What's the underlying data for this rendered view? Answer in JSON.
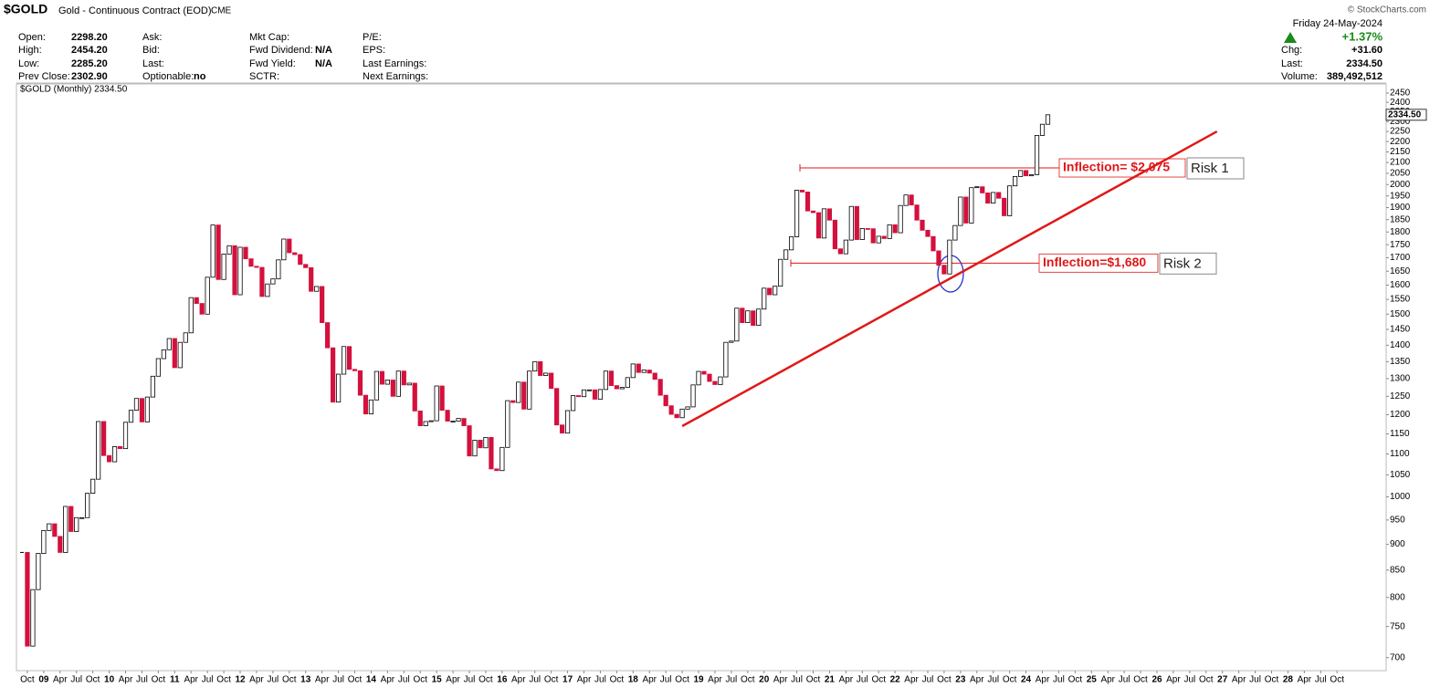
{
  "header": {
    "symbol": "$GOLD",
    "name": "Gold - Continuous Contract (EOD)",
    "exchange": "CME",
    "copyright": "© StockCharts.com",
    "fields": [
      [
        {
          "label": "Open:",
          "value": "2298.20"
        },
        {
          "label": "High:",
          "value": "2454.20"
        },
        {
          "label": "Low:",
          "value": "2285.20"
        },
        {
          "label": "Prev Close:",
          "value": "2302.90"
        }
      ],
      [
        {
          "label": "Ask:"
        },
        {
          "label": "Bid:"
        },
        {
          "label": "Last:"
        },
        {
          "label": "Optionable:",
          "value": "no"
        }
      ],
      [
        {
          "label": "Mkt Cap:"
        },
        {
          "label": "Fwd Dividend:",
          "value": "N/A"
        },
        {
          "label": "Fwd Yield:",
          "value": "N/A"
        },
        {
          "label": "SCTR:"
        }
      ],
      [
        {
          "label": "P/E:"
        },
        {
          "label": "EPS:"
        },
        {
          "label": "Last Earnings:"
        },
        {
          "label": "Next Earnings:"
        }
      ]
    ],
    "summary": {
      "date": "Friday 24-May-2024",
      "change_pct": "+1.37%",
      "rows": [
        {
          "label": "Chg:",
          "value": "+31.60"
        },
        {
          "label": "Last:",
          "value": "2334.50"
        },
        {
          "label": "Volume:",
          "value": "389,492,512"
        }
      ]
    }
  },
  "chart_data": {
    "type": "candlestick",
    "legend": "$GOLD (Monthly) 2334.50",
    "scale": "log",
    "up_color": "#ffffff",
    "down_color": "#d4103c",
    "close": [
      884,
      718,
      814,
      882,
      928,
      942,
      916,
      884,
      979,
      926,
      955,
      955,
      1008,
      1040,
      1182,
      1096,
      1081,
      1118,
      1113,
      1180,
      1212,
      1244,
      1181,
      1248,
      1307,
      1359,
      1386,
      1421,
      1332,
      1409,
      1439,
      1556,
      1536,
      1500,
      1628,
      1828,
      1620,
      1714,
      1746,
      1566,
      1740,
      1696,
      1668,
      1664,
      1560,
      1604,
      1622,
      1692,
      1772,
      1719,
      1712,
      1675,
      1663,
      1578,
      1595,
      1472,
      1392,
      1234,
      1313,
      1396,
      1327,
      1323,
      1253,
      1202,
      1240,
      1321,
      1284,
      1296,
      1250,
      1322,
      1282,
      1287,
      1210,
      1171,
      1182,
      1184,
      1279,
      1212,
      1183,
      1183,
      1190,
      1171,
      1095,
      1134,
      1115,
      1141,
      1064,
      1060,
      1116,
      1238,
      1233,
      1290,
      1215,
      1322,
      1350,
      1309,
      1316,
      1272,
      1173,
      1152,
      1211,
      1252,
      1249,
      1268,
      1268,
      1242,
      1269,
      1322,
      1280,
      1271,
      1275,
      1303,
      1343,
      1318,
      1325,
      1316,
      1298,
      1253,
      1224,
      1201,
      1192,
      1215,
      1221,
      1282,
      1321,
      1313,
      1292,
      1283,
      1305,
      1409,
      1413,
      1520,
      1472,
      1511,
      1463,
      1517,
      1589,
      1566,
      1596,
      1694,
      1730,
      1781,
      1975,
      1967,
      1886,
      1879,
      1776,
      1895,
      1848,
      1734,
      1715,
      1768,
      1905,
      1770,
      1814,
      1813,
      1757,
      1783,
      1774,
      1829,
      1797,
      1909,
      1954,
      1911,
      1848,
      1807,
      1782,
      1726,
      1672,
      1640,
      1768,
      1826,
      1945,
      1836,
      1986,
      1990,
      1963,
      1919,
      1965,
      1940,
      1866,
      1994,
      2036,
      2063,
      2039,
      2044,
      2230,
      2286,
      2334.5
    ],
    "price_tag": {
      "value": 2334.5,
      "label": "2334.50"
    },
    "xlim": [
      -1,
      250
    ],
    "ylim": [
      680,
      2500
    ],
    "yticks": [
      700,
      750,
      800,
      850,
      900,
      950,
      1000,
      1050,
      1100,
      1150,
      1200,
      1250,
      1300,
      1350,
      1400,
      1450,
      1500,
      1550,
      1600,
      1650,
      1700,
      1750,
      1800,
      1850,
      1900,
      1950,
      2000,
      2050,
      2100,
      2150,
      2200,
      2250,
      2300,
      2350,
      2400,
      2450
    ],
    "xticks": [
      {
        "value": 1,
        "label": "Oct"
      },
      {
        "value": 4,
        "label": "09"
      },
      {
        "value": 7,
        "label": "Apr"
      },
      {
        "value": 10,
        "label": "Jul"
      },
      {
        "value": 13,
        "label": "Oct"
      },
      {
        "value": 16,
        "label": "10"
      },
      {
        "value": 19,
        "label": "Apr"
      },
      {
        "value": 22,
        "label": "Jul"
      },
      {
        "value": 25,
        "label": "Oct"
      },
      {
        "value": 28,
        "label": "11"
      },
      {
        "value": 31,
        "label": "Apr"
      },
      {
        "value": 34,
        "label": "Jul"
      },
      {
        "value": 37,
        "label": "Oct"
      },
      {
        "value": 40,
        "label": "12"
      },
      {
        "value": 43,
        "label": "Apr"
      },
      {
        "value": 46,
        "label": "Jul"
      },
      {
        "value": 49,
        "label": "Oct"
      },
      {
        "value": 52,
        "label": "13"
      },
      {
        "value": 55,
        "label": "Apr"
      },
      {
        "value": 58,
        "label": "Jul"
      },
      {
        "value": 61,
        "label": "Oct"
      },
      {
        "value": 64,
        "label": "14"
      },
      {
        "value": 67,
        "label": "Apr"
      },
      {
        "value": 70,
        "label": "Jul"
      },
      {
        "value": 73,
        "label": "Oct"
      },
      {
        "value": 76,
        "label": "15"
      },
      {
        "value": 79,
        "label": "Apr"
      },
      {
        "value": 82,
        "label": "Jul"
      },
      {
        "value": 85,
        "label": "Oct"
      },
      {
        "value": 88,
        "label": "16"
      },
      {
        "value": 91,
        "label": "Apr"
      },
      {
        "value": 94,
        "label": "Jul"
      },
      {
        "value": 97,
        "label": "Oct"
      },
      {
        "value": 100,
        "label": "17"
      },
      {
        "value": 103,
        "label": "Apr"
      },
      {
        "value": 106,
        "label": "Jul"
      },
      {
        "value": 109,
        "label": "Oct"
      },
      {
        "value": 112,
        "label": "18"
      },
      {
        "value": 115,
        "label": "Apr"
      },
      {
        "value": 118,
        "label": "Jul"
      },
      {
        "value": 121,
        "label": "Oct"
      },
      {
        "value": 124,
        "label": "19"
      },
      {
        "value": 127,
        "label": "Apr"
      },
      {
        "value": 130,
        "label": "Jul"
      },
      {
        "value": 133,
        "label": "Oct"
      },
      {
        "value": 136,
        "label": "20"
      },
      {
        "value": 139,
        "label": "Apr"
      },
      {
        "value": 142,
        "label": "Jul"
      },
      {
        "value": 145,
        "label": "Oct"
      },
      {
        "value": 148,
        "label": "21"
      },
      {
        "value": 151,
        "label": "Apr"
      },
      {
        "value": 154,
        "label": "Jul"
      },
      {
        "value": 157,
        "label": "Oct"
      },
      {
        "value": 160,
        "label": "22"
      },
      {
        "value": 163,
        "label": "Apr"
      },
      {
        "value": 166,
        "label": "Jul"
      },
      {
        "value": 169,
        "label": "Oct"
      },
      {
        "value": 172,
        "label": "23"
      },
      {
        "value": 175,
        "label": "Apr"
      },
      {
        "value": 178,
        "label": "Jul"
      },
      {
        "value": 181,
        "label": "Oct"
      },
      {
        "value": 184,
        "label": "24"
      },
      {
        "value": 187,
        "label": "Apr"
      },
      {
        "value": 190,
        "label": "Jul"
      },
      {
        "value": 193,
        "label": "Oct"
      },
      {
        "value": 196,
        "label": "25"
      },
      {
        "value": 199,
        "label": "Apr"
      },
      {
        "value": 202,
        "label": "Jul"
      },
      {
        "value": 205,
        "label": "Oct"
      },
      {
        "value": 208,
        "label": "26"
      },
      {
        "value": 211,
        "label": "Apr"
      },
      {
        "value": 214,
        "label": "Jul"
      },
      {
        "value": 217,
        "label": "Oct"
      },
      {
        "value": 220,
        "label": "27"
      },
      {
        "value": 223,
        "label": "Apr"
      },
      {
        "value": 226,
        "label": "Jul"
      },
      {
        "value": 229,
        "label": "Oct"
      },
      {
        "value": 232,
        "label": "28"
      },
      {
        "value": 235,
        "label": "Apr"
      },
      {
        "value": 238,
        "label": "Jul"
      },
      {
        "value": 241,
        "label": "Oct"
      }
    ],
    "trendline": {
      "x": [
        121,
        219
      ],
      "y": [
        1170,
        2250
      ],
      "color": "#e01818"
    },
    "annotations": [
      {
        "label": "Inflection= $2,075",
        "value": 2075,
        "tag": "Risk 1"
      },
      {
        "label": "Inflection=$1,680",
        "value": 1680,
        "tag": "Risk 2"
      }
    ]
  }
}
